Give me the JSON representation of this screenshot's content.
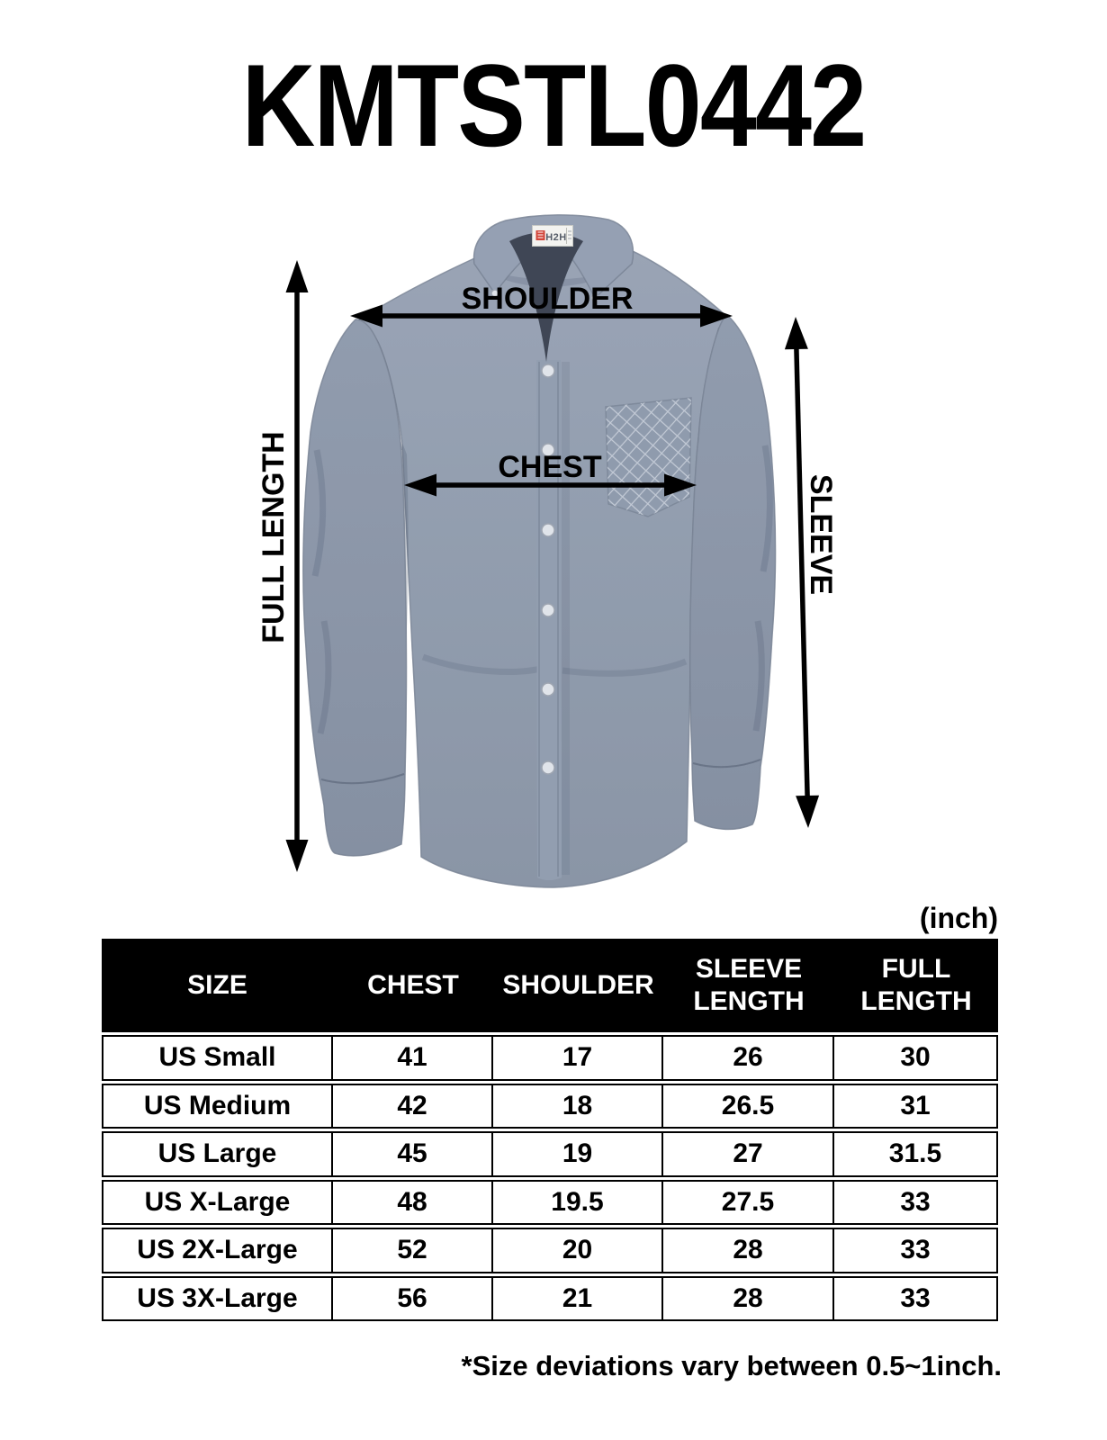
{
  "title": "KMTSTL0442",
  "diagram": {
    "brand_label": "H2H",
    "labels": {
      "shoulder": "SHOULDER",
      "chest": "CHEST",
      "full_length": "FULL LENGTH",
      "sleeve": "SLEEVE"
    }
  },
  "size_table": {
    "unit_label": "(inch)",
    "columns": [
      "SIZE",
      "CHEST",
      "SHOULDER",
      "SLEEVE LENGTH",
      "FULL LENGTH"
    ],
    "rows": [
      [
        "US Small",
        "41",
        "17",
        "26",
        "30"
      ],
      [
        "US Medium",
        "42",
        "18",
        "26.5",
        "31"
      ],
      [
        "US Large",
        "45",
        "19",
        "27",
        "31.5"
      ],
      [
        "US X-Large",
        "48",
        "19.5",
        "27.5",
        "33"
      ],
      [
        "US 2X-Large",
        "52",
        "20",
        "28",
        "33"
      ],
      [
        "US 3X-Large",
        "56",
        "21",
        "28",
        "33"
      ]
    ]
  },
  "footnote": "*Size deviations vary between 0.5~1inch."
}
